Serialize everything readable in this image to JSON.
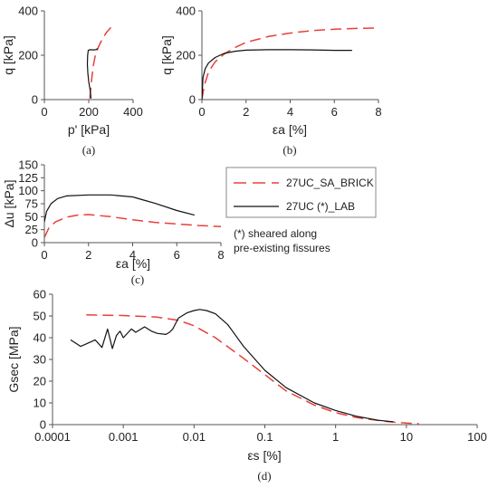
{
  "colors": {
    "sa_brick": "#e8403a",
    "lab": "#111111",
    "axis": "#555555"
  },
  "legend": {
    "items": [
      {
        "label": "27UC_SA_BRICK",
        "color": "#e8403a",
        "dashed": true
      },
      {
        "label": "27UC (*)_LAB",
        "color": "#111111",
        "dashed": false
      }
    ],
    "note_lines": [
      "(*) sheared along",
      "pre-existing fissures"
    ]
  },
  "chart_data": [
    {
      "type": "line",
      "caption": "(a)",
      "xlabel": "p' [kPa]",
      "ylabel": "q [kPa]",
      "xlim": [
        0,
        400
      ],
      "ylim": [
        0,
        400
      ],
      "xticks": [
        "0",
        "200",
        "400"
      ],
      "yticks": [
        "0",
        "200",
        "400"
      ],
      "series": [
        {
          "name": "27UC_SA_BRICK",
          "x": [
            205,
            208,
            213,
            220,
            230,
            245,
            262,
            280,
            300
          ],
          "y": [
            5,
            40,
            90,
            150,
            200,
            240,
            275,
            303,
            325
          ]
        },
        {
          "name": "27UC (*)_LAB",
          "x": [
            210,
            207,
            200,
            196,
            194,
            195,
            198,
            205,
            218,
            232,
            240
          ],
          "y": [
            5,
            40,
            80,
            120,
            160,
            200,
            222,
            225,
            224,
            225,
            230
          ]
        }
      ]
    },
    {
      "type": "line",
      "caption": "(b)",
      "xlabel": "εa [%]",
      "ylabel": "q [kPa]",
      "xlim": [
        0,
        8
      ],
      "ylim": [
        0,
        400
      ],
      "xticks": [
        "0",
        "2",
        "4",
        "6",
        "8"
      ],
      "yticks": [
        "0",
        "200",
        "400"
      ],
      "series": [
        {
          "name": "27UC_SA_BRICK",
          "x": [
            0,
            0.1,
            0.3,
            0.6,
            1,
            1.5,
            2,
            3,
            4,
            5,
            6,
            7,
            8
          ],
          "y": [
            0,
            60,
            125,
            170,
            205,
            235,
            258,
            284,
            300,
            311,
            317,
            321,
            323
          ]
        },
        {
          "name": "27UC (*)_LAB",
          "x": [
            0,
            0.05,
            0.15,
            0.3,
            0.6,
            1,
            1.5,
            2,
            3,
            4,
            5,
            6,
            6.8
          ],
          "y": [
            0,
            100,
            140,
            165,
            190,
            208,
            218,
            223,
            225,
            225,
            224,
            222,
            222
          ]
        }
      ]
    },
    {
      "type": "line",
      "caption": "(c)",
      "xlabel": "εa [%]",
      "ylabel": "Δu [kPa]",
      "xlim": [
        0,
        8
      ],
      "ylim": [
        0,
        150
      ],
      "xticks": [
        "0",
        "2",
        "4",
        "6",
        "8"
      ],
      "yticks": [
        "0",
        "25",
        "50",
        "75",
        "100",
        "125",
        "150"
      ],
      "series": [
        {
          "name": "27UC_SA_BRICK",
          "x": [
            0,
            0.2,
            0.5,
            1,
            1.5,
            2,
            3,
            4,
            5,
            6,
            7,
            8
          ],
          "y": [
            10,
            28,
            40,
            49,
            53,
            54,
            50,
            44,
            39,
            36,
            33,
            31
          ]
        },
        {
          "name": "27UC (*)_LAB",
          "x": [
            0,
            0.1,
            0.3,
            0.6,
            1,
            2,
            3,
            4,
            4.5,
            5,
            6,
            6.8
          ],
          "y": [
            40,
            60,
            75,
            85,
            90,
            92,
            92,
            88,
            82,
            76,
            62,
            53
          ]
        }
      ]
    },
    {
      "type": "line",
      "caption": "(d)",
      "xlabel": "εs [%]",
      "ylabel": "Gsec [MPa]",
      "xscale": "log",
      "xlim": [
        0.0001,
        100
      ],
      "ylim": [
        0,
        60
      ],
      "xticks": [
        "0.0001",
        "0.001",
        "0.01",
        "0.1",
        "1",
        "10",
        "100"
      ],
      "yticks": [
        "0",
        "10",
        "20",
        "30",
        "40",
        "50",
        "60"
      ],
      "series": [
        {
          "name": "27UC_SA_BRICK",
          "x": [
            0.0003,
            0.001,
            0.003,
            0.006,
            0.01,
            0.02,
            0.05,
            0.1,
            0.2,
            0.5,
            1,
            2,
            5,
            10,
            15
          ],
          "y": [
            50.5,
            50.2,
            49.5,
            48,
            45.5,
            40,
            30.5,
            23,
            15.5,
            9,
            5.5,
            3.2,
            1.5,
            0.7,
            0.4
          ]
        },
        {
          "name": "27UC (*)_LAB",
          "x": [
            0.00018,
            0.00025,
            0.0004,
            0.0005,
            0.0006,
            0.0007,
            0.0008,
            0.0009,
            0.001,
            0.0013,
            0.0015,
            0.002,
            0.0025,
            0.003,
            0.004,
            0.0045,
            0.005,
            0.006,
            0.008,
            0.01,
            0.012,
            0.015,
            0.02,
            0.03,
            0.05,
            0.1,
            0.2,
            0.5,
            1,
            2,
            4,
            6.5
          ],
          "y": [
            39,
            36,
            39,
            35.5,
            44,
            35,
            41,
            43,
            40,
            44,
            42.5,
            45,
            43,
            42,
            41.5,
            42.5,
            44,
            49,
            51.5,
            52.5,
            53,
            52.5,
            51,
            46,
            36,
            25,
            17,
            10,
            6.5,
            3.8,
            2,
            1.3
          ]
        }
      ]
    }
  ]
}
